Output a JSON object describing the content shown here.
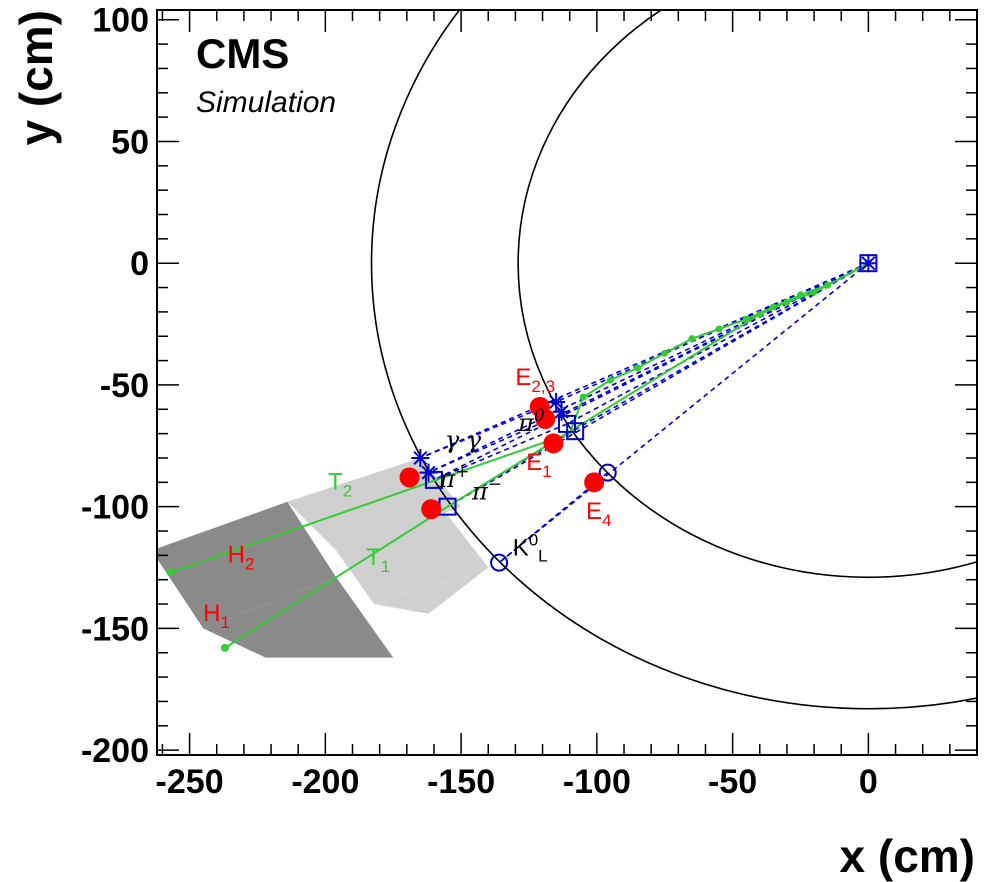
{
  "chart_data": {
    "type": "scatter",
    "title": "CMS",
    "subtitle": "Simulation",
    "xlabel": "x (cm)",
    "ylabel": "y (cm)",
    "xlim": [
      -262,
      40
    ],
    "ylim": [
      -202,
      104
    ],
    "xticks": [
      -250,
      -200,
      -150,
      -100,
      -50,
      0
    ],
    "yticks": [
      -200,
      -150,
      -100,
      -50,
      0,
      50,
      100
    ],
    "xtick_labels": [
      "-250",
      "-200",
      "-150",
      "-100",
      "-50",
      "0"
    ],
    "ytick_labels": [
      "-200",
      "-150",
      "-100",
      "-50",
      "0",
      "50",
      "100"
    ],
    "circles": [
      {
        "name": "ecal-boundary",
        "r": 129
      },
      {
        "name": "hcal-boundary",
        "r": 183
      }
    ],
    "hcal_cells": [
      {
        "name": "H2-cell",
        "corners": [
          [
            -264,
            -118
          ],
          [
            -214,
            -98
          ],
          [
            -196,
            -129
          ],
          [
            -245,
            -150
          ]
        ]
      },
      {
        "name": "H1-cell",
        "corners": [
          [
            -245,
            -150
          ],
          [
            -196,
            -129
          ],
          [
            -175,
            -162
          ],
          [
            -222,
            -162
          ]
        ]
      }
    ],
    "hcal_light_cells": [
      {
        "name": "T2-cell",
        "corners": [
          [
            -214,
            -98
          ],
          [
            -165,
            -80
          ],
          [
            -150,
            -100
          ],
          [
            -196,
            -118
          ]
        ]
      },
      {
        "name": "T1-cell",
        "corners": [
          [
            -196,
            -118
          ],
          [
            -156,
            -102
          ],
          [
            -140,
            -125
          ],
          [
            -182,
            -140
          ]
        ]
      },
      {
        "name": "T1-cell-low",
        "corners": [
          [
            -182,
            -140
          ],
          [
            -140,
            -125
          ],
          [
            -162,
            -144
          ]
        ]
      }
    ],
    "tracks": [
      {
        "name": "T2",
        "label": "T",
        "sub": "2",
        "from": [
          0,
          0
        ],
        "points": [
          [
            -15,
            -9
          ],
          [
            -25,
            -13
          ],
          [
            -35,
            -18
          ],
          [
            -45,
            -23
          ],
          [
            -55,
            -27
          ],
          [
            -65,
            -31
          ],
          [
            -75,
            -37
          ],
          [
            -85,
            -43
          ],
          [
            -95,
            -48
          ],
          [
            -105,
            -55
          ]
        ],
        "to": [
          -110,
          -70
        ],
        "ext": [
          -257,
          -127
        ],
        "end_dot": [
          -257,
          -127
        ]
      },
      {
        "name": "T1",
        "label": "T",
        "sub": "1",
        "from": [
          0,
          0
        ],
        "points": [
          [
            -20,
            -12
          ],
          [
            -30,
            -16
          ],
          [
            -40,
            -21
          ]
        ],
        "to": [
          -155,
          -100
        ],
        "ext": [
          -237,
          -158
        ],
        "end_dot": [
          -237,
          -158
        ]
      }
    ],
    "rays": [
      {
        "from": [
          0,
          0
        ],
        "to": [
          -165,
          -80
        ]
      },
      {
        "from": [
          0,
          0
        ],
        "to": [
          -162,
          -86
        ]
      },
      {
        "from": [
          0,
          0
        ],
        "to": [
          -160,
          -89
        ]
      },
      {
        "from": [
          0,
          0
        ],
        "to": [
          -155,
          -100
        ]
      },
      {
        "from": [
          0,
          0
        ],
        "to": [
          -136,
          -123
        ]
      },
      {
        "from": [
          0,
          0
        ],
        "to": [
          -115,
          -57
        ]
      },
      {
        "from": [
          0,
          0
        ],
        "to": [
          -113,
          -62
        ]
      },
      {
        "from": [
          0,
          0
        ],
        "to": [
          -111,
          -66
        ]
      },
      {
        "from": [
          0,
          0
        ],
        "to": [
          -109,
          -69
        ]
      },
      {
        "from": [
          -115,
          -57
        ],
        "to": [
          -165,
          -80
        ]
      },
      {
        "from": [
          -113,
          -62
        ],
        "to": [
          -162,
          -86
        ]
      },
      {
        "from": [
          -111,
          -66
        ],
        "to": [
          -160,
          -89
        ]
      },
      {
        "from": [
          -109,
          -69
        ],
        "to": [
          -155,
          -100
        ]
      },
      {
        "from": [
          -96,
          -86
        ],
        "to": [
          -136,
          -123
        ]
      }
    ],
    "stars": [
      {
        "x": -165,
        "y": -80
      },
      {
        "x": -162,
        "y": -86
      },
      {
        "x": -115,
        "y": -57
      },
      {
        "x": -113,
        "y": -61
      },
      {
        "x": 0,
        "y": 0
      }
    ],
    "squares": [
      {
        "x": -160,
        "y": -89
      },
      {
        "x": -155,
        "y": -100
      },
      {
        "x": -111,
        "y": -66
      },
      {
        "x": -108,
        "y": -69
      },
      {
        "x": 0,
        "y": 0
      }
    ],
    "open_circles": [
      {
        "x": -136,
        "y": -123
      },
      {
        "x": -96,
        "y": -86
      }
    ],
    "clusters": [
      {
        "name": "E23-a",
        "x": -121,
        "y": -59
      },
      {
        "name": "E23-b",
        "x": -119,
        "y": -64
      },
      {
        "name": "E1",
        "x": -116,
        "y": -74
      },
      {
        "name": "E4",
        "x": -101,
        "y": -90
      },
      {
        "name": "T2-cluster",
        "x": -169,
        "y": -88
      },
      {
        "name": "T1-cluster",
        "x": -161,
        "y": -101
      }
    ],
    "annotations": [
      {
        "name": "E23",
        "text": "E",
        "sub": "2,3",
        "x": -130,
        "y": -50,
        "color": "#ff0000"
      },
      {
        "name": "E1",
        "text": "E",
        "sub": "1",
        "x": -126,
        "y": -85,
        "color": "#ff0000"
      },
      {
        "name": "E4",
        "text": "E",
        "sub": "4",
        "x": -104,
        "y": -105,
        "color": "#ff0000"
      },
      {
        "name": "T2",
        "text": "T",
        "sub": "2",
        "x": -199,
        "y": -93,
        "color": "#33cc33"
      },
      {
        "name": "T1",
        "text": "T",
        "sub": "1",
        "x": -185,
        "y": -124,
        "color": "#33cc33"
      },
      {
        "name": "H2",
        "text": "H",
        "sub": "2",
        "x": -236,
        "y": -123,
        "color": "#ff0000"
      },
      {
        "name": "H1",
        "text": "H",
        "sub": "1",
        "x": -245,
        "y": -147,
        "color": "#ff0000"
      },
      {
        "name": "K0L",
        "text": "K",
        "sup": "0",
        "sub": "L",
        "x": -131,
        "y": -120,
        "color": "#000000"
      },
      {
        "name": "pi-plus",
        "text": "π",
        "sup": "+",
        "x": -158,
        "y": -92,
        "color": "#000000"
      },
      {
        "name": "pi-minus",
        "text": "π",
        "sup": "−",
        "x": -146,
        "y": -97,
        "color": "#000000"
      },
      {
        "name": "pi0",
        "text": "π",
        "sup": "0",
        "x": -129,
        "y": -69,
        "color": "#000000"
      },
      {
        "name": "gamma-gamma",
        "text": "γ γ",
        "x": -156,
        "y": -76,
        "color": "#000000"
      }
    ],
    "colors": {
      "cluster": "#ff0000",
      "track": "#33cc33",
      "ray": "#0000cc",
      "cell_dark": "#8a8a8a",
      "cell_light": "#d0d0d0"
    }
  }
}
